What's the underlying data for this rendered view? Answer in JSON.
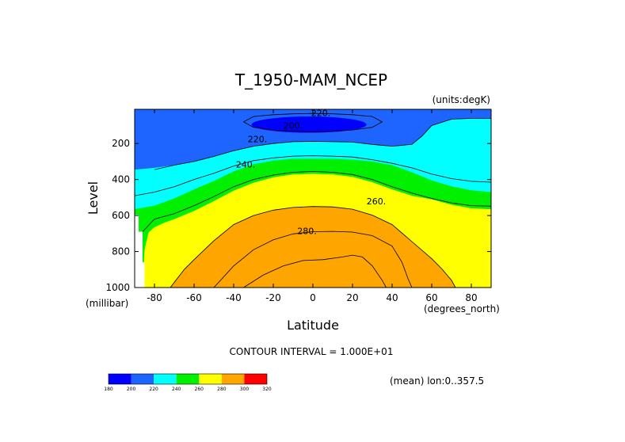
{
  "chart_data": {
    "type": "contour",
    "title": "T_1950-MAM_NCEP",
    "units_label": "(units:degK)",
    "xlabel": "Latitude",
    "xunit": "(degrees_north)",
    "ylabel": "Level",
    "yunit": "(millibar)",
    "xlim": [
      -90,
      90
    ],
    "ylim": [
      1000,
      10
    ],
    "x_ticks": [
      -80,
      -60,
      -40,
      -20,
      0,
      20,
      40,
      60,
      80
    ],
    "y_ticks": [
      200,
      400,
      600,
      800,
      1000
    ],
    "contour_interval_text": "CONTOUR INTERVAL = 1.000E+01",
    "mean_text": "(mean) lon:0..357.5",
    "contour_labels": [
      {
        "text": "220.",
        "lat": 4,
        "level": 30
      },
      {
        "text": "200.",
        "lat": -10,
        "level": 100
      },
      {
        "text": "220.",
        "lat": -28,
        "level": 175
      },
      {
        "text": "240.",
        "lat": -34,
        "level": 315
      },
      {
        "text": "260.",
        "lat": 32,
        "level": 520
      },
      {
        "text": "280.",
        "lat": -3,
        "level": 685
      }
    ],
    "colorbar": {
      "colors": [
        "#0000ff",
        "#1e64ff",
        "#00ffff",
        "#00f000",
        "#ffff00",
        "#ffa500",
        "#ff0000"
      ],
      "ticks": [
        "180",
        "200",
        "220",
        "240",
        "260",
        "280",
        "300",
        "320"
      ]
    },
    "bands": [
      {
        "color": "#1e64ff",
        "top": [
          [
            -90,
            10
          ],
          [
            90,
            10
          ]
        ],
        "bottom": [
          [
            -90,
            10
          ],
          [
            90,
            10
          ]
        ]
      },
      {
        "color": "#00ffff",
        "top": [
          [
            -90,
            10
          ],
          [
            90,
            10
          ]
        ],
        "bottom": [
          [
            -90,
            345
          ],
          [
            -80,
            335
          ],
          [
            -70,
            320
          ],
          [
            -60,
            300
          ],
          [
            -50,
            272
          ],
          [
            -40,
            240
          ],
          [
            -30,
            215
          ],
          [
            -20,
            200
          ],
          [
            -10,
            190
          ],
          [
            0,
            188
          ],
          [
            10,
            190
          ],
          [
            20,
            192
          ],
          [
            30,
            205
          ],
          [
            40,
            215
          ],
          [
            50,
            205
          ],
          [
            55,
            160
          ],
          [
            60,
            100
          ],
          [
            70,
            65
          ],
          [
            80,
            60
          ],
          [
            90,
            60
          ]
        ]
      },
      {
        "color": "#00f000",
        "top": [
          [
            -90,
            10
          ],
          [
            90,
            10
          ]
        ],
        "bottom": [
          [
            -90,
            565
          ],
          [
            -80,
            545
          ],
          [
            -70,
            505
          ],
          [
            -60,
            455
          ],
          [
            -50,
            408
          ],
          [
            -40,
            355
          ],
          [
            -30,
            315
          ],
          [
            -20,
            295
          ],
          [
            -10,
            285
          ],
          [
            0,
            285
          ],
          [
            10,
            285
          ],
          [
            20,
            290
          ],
          [
            30,
            300
          ],
          [
            40,
            320
          ],
          [
            50,
            360
          ],
          [
            60,
            405
          ],
          [
            70,
            438
          ],
          [
            80,
            460
          ],
          [
            90,
            470
          ]
        ]
      },
      {
        "color": "#ffff00",
        "top": [
          [
            -90,
            10
          ],
          [
            90,
            10
          ]
        ],
        "bottom": [
          [
            -90,
            1000
          ],
          [
            -86,
            1000
          ],
          [
            -85,
            790
          ],
          [
            -83,
            695
          ],
          [
            -80,
            665
          ],
          [
            -75,
            640
          ],
          [
            -70,
            620
          ],
          [
            -60,
            575
          ],
          [
            -50,
            520
          ],
          [
            -40,
            462
          ],
          [
            -30,
            418
          ],
          [
            -20,
            388
          ],
          [
            -10,
            372
          ],
          [
            0,
            368
          ],
          [
            10,
            372
          ],
          [
            20,
            385
          ],
          [
            30,
            415
          ],
          [
            40,
            455
          ],
          [
            50,
            490
          ],
          [
            60,
            510
          ],
          [
            70,
            540
          ],
          [
            80,
            560
          ],
          [
            90,
            565
          ]
        ]
      },
      {
        "color": "#ffa500",
        "top": [
          [
            -90,
            10
          ],
          [
            90,
            10
          ]
        ],
        "bottom": [
          [
            -90,
            1000
          ],
          [
            -71,
            1000
          ],
          [
            -70,
            965
          ],
          [
            -60,
            860
          ],
          [
            -50,
            750
          ],
          [
            -40,
            665
          ],
          [
            -30,
            610
          ],
          [
            -20,
            580
          ],
          [
            -10,
            565
          ],
          [
            0,
            560
          ],
          [
            10,
            562
          ],
          [
            20,
            575
          ],
          [
            30,
            605
          ],
          [
            40,
            660
          ],
          [
            50,
            760
          ],
          [
            60,
            850
          ],
          [
            65,
            900
          ],
          [
            70,
            960
          ],
          [
            72,
            1000
          ],
          [
            90,
            1000
          ]
        ]
      },
      {
        "color": "#ffff00",
        "top": [
          [
            -90,
            10
          ],
          [
            90,
            10
          ]
        ],
        "bottom": [
          [
            -90,
            1000
          ],
          [
            -51,
            1000
          ],
          [
            -50,
            990
          ],
          [
            -40,
            880
          ],
          [
            -30,
            790
          ],
          [
            -20,
            735
          ],
          [
            -10,
            702
          ],
          [
            0,
            690
          ],
          [
            10,
            688
          ],
          [
            20,
            692
          ],
          [
            30,
            712
          ],
          [
            40,
            770
          ],
          [
            45,
            860
          ],
          [
            48,
            950
          ],
          [
            50,
            1000
          ],
          [
            90,
            1000
          ]
        ]
      },
      {
        "color": "#ffa500",
        "top": [
          [
            -90,
            10
          ],
          [
            90,
            10
          ]
        ],
        "bottom": [
          [
            -90,
            1000
          ],
          [
            -90,
            1000
          ],
          [
            90,
            1000
          ],
          [
            90,
            1000
          ]
        ]
      }
    ],
    "blank_region": [
      [
        -90,
        595
      ],
      [
        -88,
        595
      ],
      [
        -88,
        690
      ],
      [
        -86,
        690
      ],
      [
        -86,
        860
      ],
      [
        -85,
        860
      ],
      [
        -85,
        1000
      ],
      [
        -90,
        1000
      ]
    ],
    "cold_core": {
      "color": "#0000ff",
      "lat_center": -2,
      "level_center": 95,
      "lat_radius": 29,
      "level_radius": 45
    },
    "contour_lines": [
      [
        [
          -80,
          345
        ],
        [
          -70,
          320
        ],
        [
          -60,
          300
        ],
        [
          -50,
          272
        ],
        [
          -40,
          240
        ],
        [
          -30,
          215
        ],
        [
          -20,
          200
        ],
        [
          -10,
          190
        ],
        [
          0,
          188
        ],
        [
          10,
          190
        ],
        [
          20,
          192
        ],
        [
          30,
          205
        ],
        [
          40,
          215
        ],
        [
          50,
          205
        ],
        [
          55,
          160
        ],
        [
          60,
          100
        ],
        [
          70,
          65
        ],
        [
          80,
          60
        ],
        [
          90,
          60
        ]
      ],
      [
        [
          -90,
          490
        ],
        [
          -80,
          470
        ],
        [
          -70,
          440
        ],
        [
          -60,
          400
        ],
        [
          -50,
          365
        ],
        [
          -40,
          325
        ],
        [
          -30,
          295
        ],
        [
          -20,
          280
        ],
        [
          -10,
          270
        ],
        [
          0,
          268
        ],
        [
          10,
          270
        ],
        [
          20,
          275
        ],
        [
          30,
          290
        ],
        [
          40,
          310
        ],
        [
          50,
          335
        ],
        [
          60,
          370
        ],
        [
          70,
          395
        ],
        [
          80,
          410
        ],
        [
          90,
          415
        ]
      ],
      [
        [
          -86,
          690
        ],
        [
          -80,
          620
        ],
        [
          -70,
          590
        ],
        [
          -60,
          545
        ],
        [
          -50,
          495
        ],
        [
          -40,
          440
        ],
        [
          -30,
          400
        ],
        [
          -20,
          375
        ],
        [
          -10,
          360
        ],
        [
          0,
          355
        ],
        [
          10,
          360
        ],
        [
          20,
          372
        ],
        [
          30,
          400
        ],
        [
          40,
          440
        ],
        [
          50,
          475
        ],
        [
          60,
          505
        ],
        [
          70,
          530
        ],
        [
          80,
          545
        ],
        [
          90,
          548
        ]
      ],
      [
        [
          -72,
          1000
        ],
        [
          -65,
          900
        ],
        [
          -60,
          845
        ],
        [
          -50,
          740
        ],
        [
          -40,
          650
        ],
        [
          -30,
          600
        ],
        [
          -20,
          570
        ],
        [
          -10,
          555
        ],
        [
          0,
          550
        ],
        [
          10,
          552
        ],
        [
          20,
          565
        ],
        [
          30,
          598
        ],
        [
          40,
          650
        ],
        [
          50,
          745
        ],
        [
          60,
          840
        ],
        [
          65,
          895
        ],
        [
          70,
          960
        ],
        [
          72,
          1000
        ]
      ],
      [
        [
          -50,
          1000
        ],
        [
          -40,
          880
        ],
        [
          -30,
          790
        ],
        [
          -20,
          735
        ],
        [
          -10,
          702
        ],
        [
          0,
          690
        ],
        [
          10,
          688
        ],
        [
          20,
          692
        ],
        [
          30,
          712
        ],
        [
          40,
          770
        ],
        [
          45,
          860
        ],
        [
          48,
          950
        ],
        [
          50,
          1000
        ]
      ],
      [
        [
          -35,
          1000
        ],
        [
          -25,
          930
        ],
        [
          -15,
          880
        ],
        [
          -5,
          850
        ],
        [
          5,
          845
        ],
        [
          15,
          830
        ],
        [
          20,
          820
        ],
        [
          25,
          830
        ],
        [
          30,
          880
        ],
        [
          35,
          960
        ],
        [
          37,
          1000
        ]
      ],
      [
        [
          -30,
          50
        ],
        [
          -20,
          40
        ],
        [
          -10,
          35
        ],
        [
          0,
          33
        ],
        [
          10,
          35
        ],
        [
          20,
          40
        ],
        [
          30,
          50
        ],
        [
          35,
          80
        ],
        [
          30,
          110
        ],
        [
          20,
          125
        ],
        [
          10,
          132
        ],
        [
          0,
          134
        ],
        [
          -10,
          132
        ],
        [
          -20,
          125
        ],
        [
          -30,
          110
        ],
        [
          -35,
          80
        ],
        [
          -30,
          50
        ]
      ]
    ]
  }
}
